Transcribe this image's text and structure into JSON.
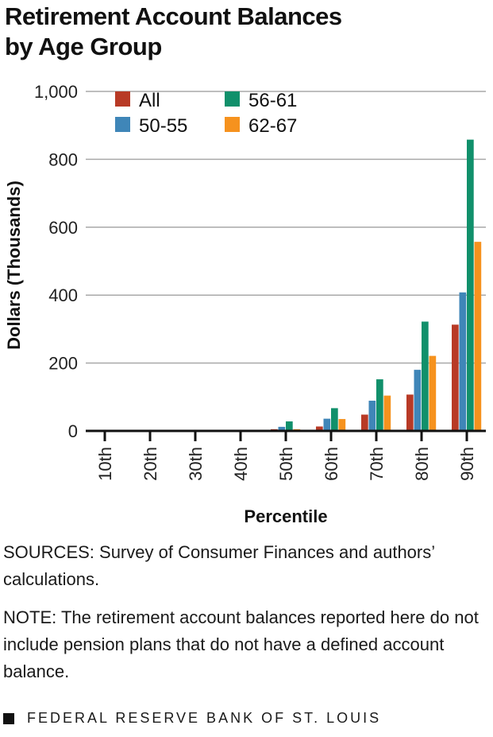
{
  "chart_data": {
    "type": "bar",
    "title": "Retirement Account Balances by Age Group",
    "title_lines": [
      "Retirement Account Balances",
      "by Age Group"
    ],
    "xlabel": "Percentile",
    "ylabel": "Dollars (Thousands)",
    "ylim": [
      0,
      1000
    ],
    "yticks": [
      0,
      200,
      400,
      600,
      800,
      1000
    ],
    "ytick_labels": [
      "0",
      "200",
      "400",
      "600",
      "800",
      "1,000"
    ],
    "grid": true,
    "legend_position": "top-left",
    "categories": [
      "10th",
      "20th",
      "30th",
      "40th",
      "50th",
      "60th",
      "70th",
      "80th",
      "90th"
    ],
    "series": [
      {
        "name": "All",
        "color": "#b83a26",
        "values": [
          0,
          0,
          0,
          0.5,
          5,
          13,
          48,
          107,
          313
        ]
      },
      {
        "name": "50-55",
        "color": "#3f86b8",
        "values": [
          0,
          0,
          0,
          1,
          12,
          36,
          89,
          180,
          408
        ]
      },
      {
        "name": "56-61",
        "color": "#11906b",
        "values": [
          0,
          0,
          0.5,
          3,
          28,
          67,
          152,
          322,
          858
        ]
      },
      {
        "name": "62-67",
        "color": "#f6921e",
        "values": [
          0,
          0,
          0,
          0.5,
          5,
          35,
          104,
          221,
          557
        ]
      }
    ]
  },
  "notes": {
    "sources": "SOURCES: Survey of Consumer Finances and authors’ calculations.",
    "note": "NOTE: The retirement account balances reported here do not include pension plans that do not have a defined account balance."
  },
  "footer": {
    "label": "FEDERAL RESERVE BANK OF ST. LOUIS"
  }
}
